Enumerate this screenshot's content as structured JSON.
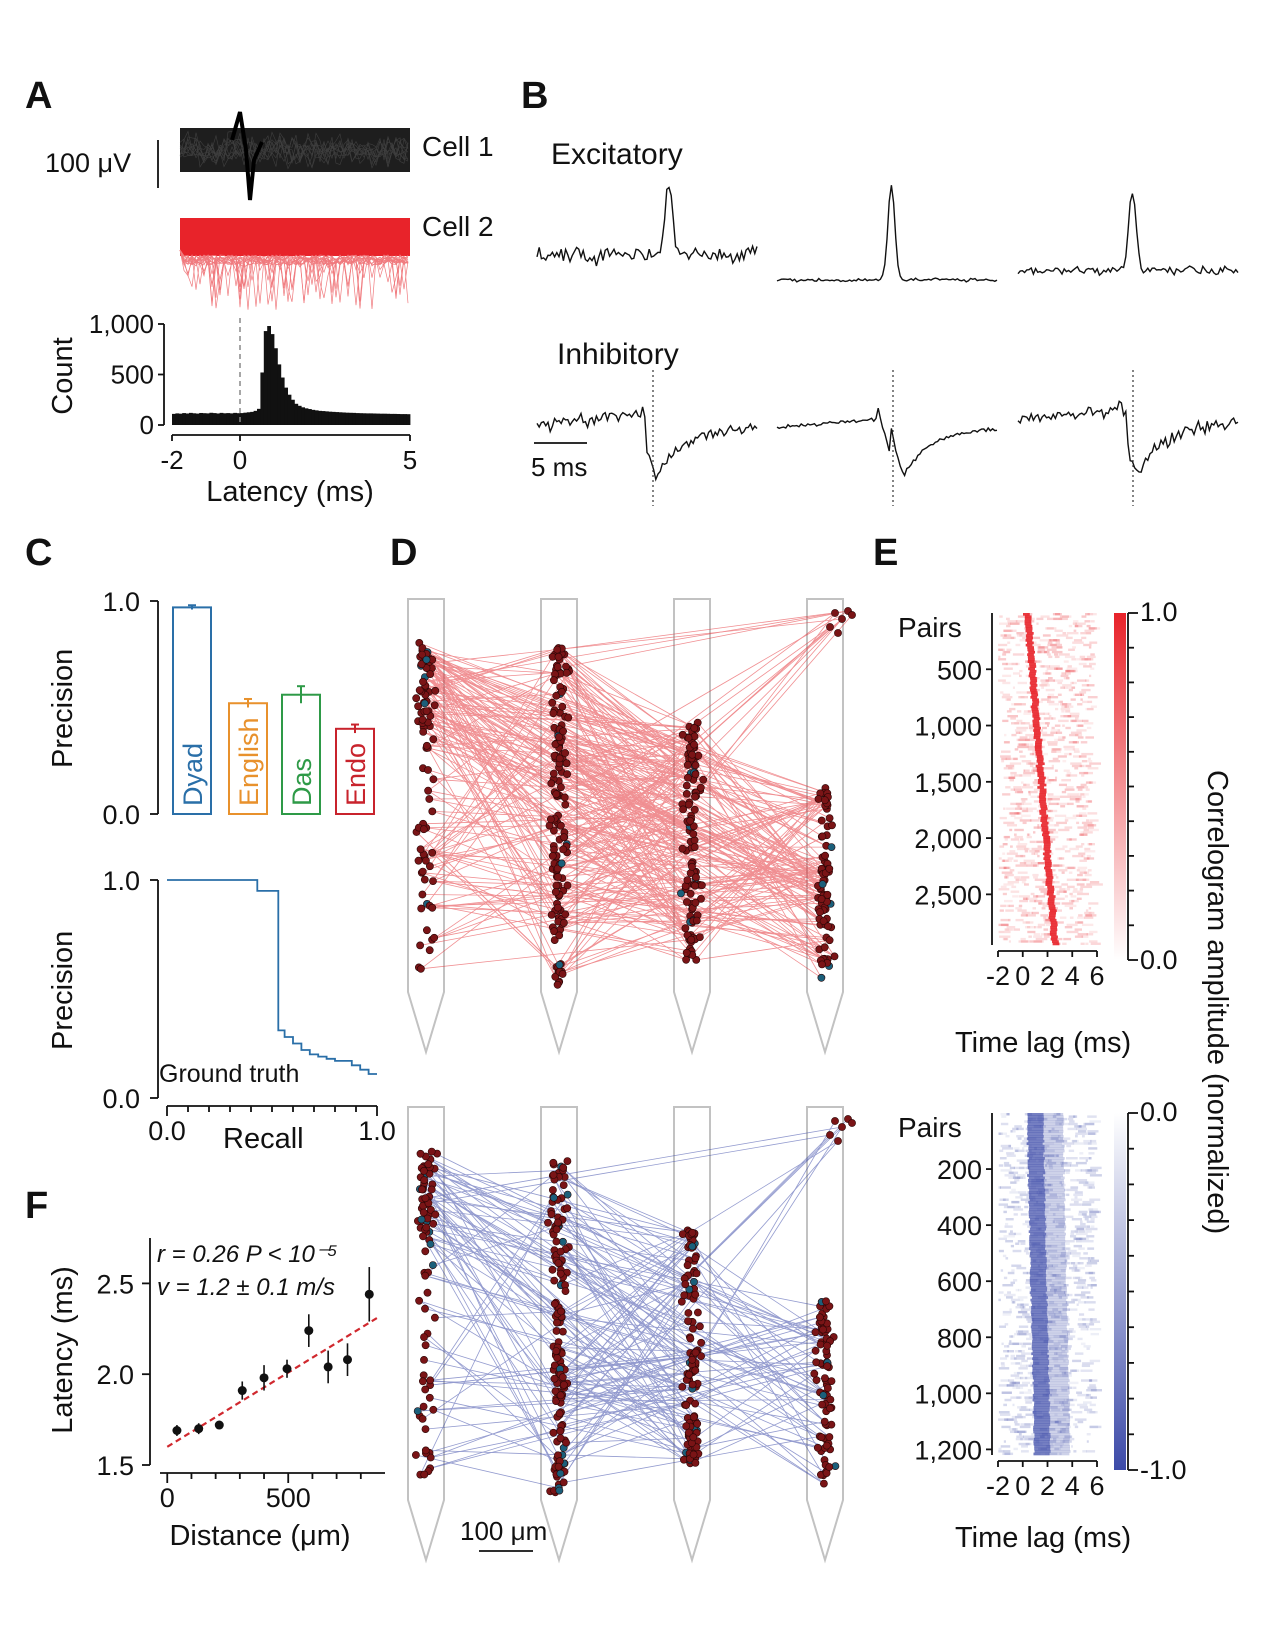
{
  "colors": {
    "black": "#111111",
    "cell2_red": "#e8232a",
    "exc_red": "#e4343a",
    "inh_blue": "#3c4aa8",
    "dyad": "#2a6fa8",
    "english": "#e8912c",
    "das": "#2e9a47",
    "endo": "#c8232c",
    "probe_gray": "#c2c2c2",
    "dot_red": "#7a1416",
    "dot_teal": "#1b5f7a"
  },
  "panels": {
    "A": {
      "label": "A",
      "scale_bar": "100 μV",
      "cells": [
        "Cell 1",
        "Cell 2"
      ]
    },
    "B": {
      "label": "B",
      "excitatory": "Excitatory",
      "inhibitory": "Inhibitory",
      "scale_bar": "5 ms"
    },
    "C": {
      "label": "C",
      "ylabel_top": "Precision",
      "ylabel_bottom": "Precision",
      "xlabel": "Recall",
      "ground_truth": "Ground truth"
    },
    "D": {
      "label": "D",
      "scale_bar": "100 μm"
    },
    "E": {
      "label": "E",
      "pairs_label": "Pairs",
      "xlabel": "Time lag (ms)",
      "colorbar_label": "Correlogram amplitude (normalized)"
    },
    "F": {
      "label": "F",
      "stat_line1": "r = 0.26  P < 10⁻⁵",
      "stat_line2": "v = 1.2 ± 0.1 m/s"
    }
  },
  "chart_data": [
    {
      "id": "A-histogram",
      "type": "bar",
      "title": "",
      "xlabel": "Latency (ms)",
      "ylabel": "Count",
      "xlim": [
        -2,
        5
      ],
      "ylim": [
        0,
        1000
      ],
      "x_ticks": [
        "-2",
        "0",
        "5"
      ],
      "y_ticks": [
        "0",
        "500",
        "1,000"
      ],
      "bin_width": 0.1,
      "x": [
        -2.0,
        -1.9,
        -1.8,
        -1.7,
        -1.6,
        -1.5,
        -1.4,
        -1.3,
        -1.2,
        -1.1,
        -1.0,
        -0.9,
        -0.8,
        -0.7,
        -0.6,
        -0.5,
        -0.4,
        -0.3,
        -0.2,
        -0.1,
        0.0,
        0.1,
        0.2,
        0.3,
        0.4,
        0.5,
        0.6,
        0.7,
        0.8,
        0.9,
        1.0,
        1.1,
        1.2,
        1.3,
        1.4,
        1.5,
        1.6,
        1.7,
        1.8,
        1.9,
        2.0,
        2.1,
        2.2,
        2.3,
        2.4,
        2.5,
        2.6,
        2.7,
        2.8,
        2.9,
        3.0,
        3.1,
        3.2,
        3.3,
        3.4,
        3.5,
        3.6,
        3.7,
        3.8,
        3.9,
        4.0,
        4.1,
        4.2,
        4.3,
        4.4,
        4.5,
        4.6,
        4.7,
        4.8,
        4.9
      ],
      "values": [
        110,
        115,
        112,
        118,
        114,
        120,
        116,
        113,
        119,
        117,
        115,
        121,
        118,
        114,
        120,
        116,
        118,
        115,
        120,
        117,
        118,
        122,
        126,
        130,
        140,
        160,
        520,
        930,
        980,
        900,
        760,
        600,
        470,
        370,
        300,
        250,
        210,
        190,
        175,
        165,
        158,
        150,
        145,
        140,
        138,
        135,
        132,
        130,
        128,
        126,
        124,
        122,
        121,
        120,
        118,
        117,
        116,
        115,
        115,
        114,
        113,
        112,
        112,
        111,
        110,
        110,
        109,
        108,
        108,
        107
      ],
      "reference_line_x": 0
    },
    {
      "id": "C-top",
      "type": "bar",
      "ylabel": "Precision",
      "ylim": [
        0,
        1
      ],
      "y_ticks": [
        "0.0",
        "1.0"
      ],
      "categories": [
        "Dyad",
        "English",
        "Das",
        "Endo"
      ],
      "values": [
        0.97,
        0.52,
        0.56,
        0.4
      ],
      "errors": [
        0.01,
        0.02,
        0.04,
        0.02
      ]
    },
    {
      "id": "C-bottom",
      "type": "line",
      "xlabel": "Recall",
      "ylabel": "Precision",
      "xlim": [
        0,
        1
      ],
      "ylim": [
        0,
        1
      ],
      "x_ticks": [
        "0.0",
        "1.0"
      ],
      "y_ticks": [
        "0.0",
        "1.0"
      ],
      "series": [
        {
          "name": "Ground truth",
          "x": [
            0,
            0.43,
            0.43,
            0.53,
            0.53,
            0.56,
            0.56,
            0.6,
            0.6,
            0.64,
            0.64,
            0.68,
            0.68,
            0.72,
            0.72,
            0.76,
            0.76,
            0.8,
            0.8,
            0.84,
            0.84,
            0.88,
            0.88,
            0.92,
            0.92,
            0.96,
            0.96,
            1.0
          ],
          "y": [
            1.0,
            1.0,
            0.95,
            0.95,
            0.31,
            0.31,
            0.28,
            0.28,
            0.25,
            0.25,
            0.22,
            0.22,
            0.2,
            0.2,
            0.19,
            0.19,
            0.18,
            0.18,
            0.17,
            0.17,
            0.17,
            0.17,
            0.15,
            0.15,
            0.13,
            0.13,
            0.11,
            0.11
          ]
        }
      ]
    },
    {
      "id": "E-top",
      "type": "heatmap",
      "xlabel": "Time lag (ms)",
      "ylabel": "Pairs",
      "x_ticks": [
        "-2",
        "0",
        "2",
        "4",
        "6"
      ],
      "y_ticks": [
        "500",
        "1,000",
        "1,500",
        "2,000",
        "2,500"
      ],
      "xlim": [
        -2,
        6
      ],
      "ylim": [
        0,
        2950
      ],
      "colorbar": {
        "min": "0.0",
        "max": "1.0",
        "colormap": "white-red"
      },
      "peak_lag_trend": {
        "pairs": [
          0,
          3000
        ],
        "lag_ms": [
          0.4,
          2.6
        ]
      }
    },
    {
      "id": "E-bottom",
      "type": "heatmap",
      "xlabel": "Time lag (ms)",
      "ylabel": "Pairs",
      "x_ticks": [
        "-2",
        "0",
        "2",
        "4",
        "6"
      ],
      "y_ticks": [
        "200",
        "400",
        "600",
        "800",
        "1,000",
        "1,200"
      ],
      "xlim": [
        -2,
        6
      ],
      "ylim": [
        0,
        1220
      ],
      "colorbar": {
        "min": "-1.0",
        "max": "0.0",
        "colormap": "blue-white"
      },
      "trough_lag_trend": {
        "pairs": [
          0,
          1220
        ],
        "lag_ms": [
          1.0,
          1.6
        ]
      }
    },
    {
      "id": "F",
      "type": "scatter",
      "xlabel": "Distance (μm)",
      "ylabel": "Latency (ms)",
      "xlim": [
        -30,
        900
      ],
      "ylim": [
        1.5,
        2.75
      ],
      "x_ticks": [
        "0",
        "500"
      ],
      "y_ticks": [
        "1.5",
        "2.0",
        "2.5"
      ],
      "series": [
        {
          "name": "binned latency",
          "x": [
            40,
            130,
            215,
            310,
            400,
            495,
            585,
            665,
            745,
            835
          ],
          "y": [
            1.69,
            1.7,
            1.72,
            1.91,
            1.98,
            2.03,
            2.24,
            2.04,
            2.08,
            2.44
          ],
          "err": [
            0.03,
            0.03,
            0.02,
            0.05,
            0.07,
            0.05,
            0.09,
            0.09,
            0.09,
            0.15
          ]
        }
      ],
      "fit_line": {
        "x": [
          0,
          880
        ],
        "y": [
          1.6,
          2.32
        ]
      },
      "r": 0.26,
      "P": "< 10⁻⁵",
      "velocity": "1.2 ± 0.1 m/s"
    }
  ]
}
